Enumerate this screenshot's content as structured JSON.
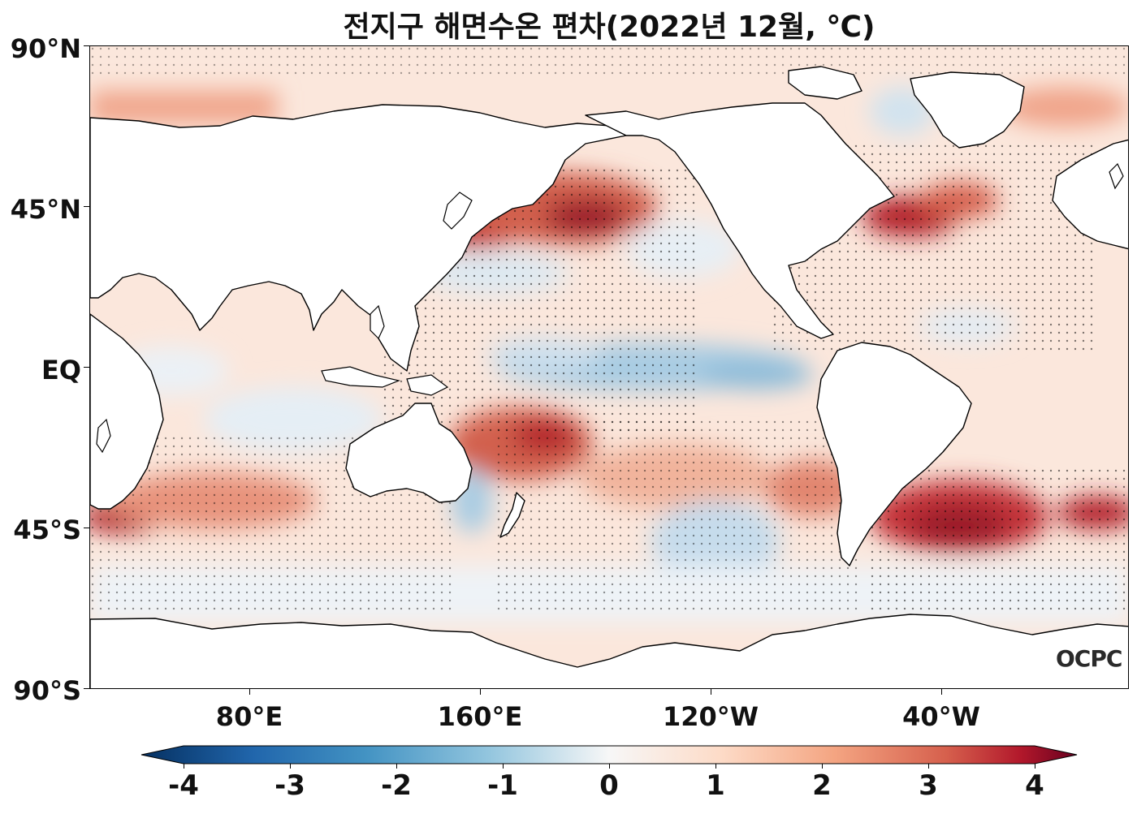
{
  "title": "전지구 해면수온 편차(2022년 12월, ℃)",
  "logo_text": "OCPC",
  "axes": {
    "lat_labels": [
      "90°N",
      "45°N",
      "EQ",
      "45°S",
      "90°S"
    ],
    "lon_labels": [
      "80°E",
      "160°E",
      "120°W",
      "40°W"
    ]
  },
  "colorbar": {
    "ticks": [
      "-4",
      "-3",
      "-2",
      "-1",
      "0",
      "1",
      "2",
      "3",
      "4"
    ],
    "colors": [
      "#053061",
      "#2166ac",
      "#4393c3",
      "#92c5de",
      "#f7f7f7",
      "#fddbc7",
      "#f4a582",
      "#d6604d",
      "#b2182b",
      "#67001f"
    ]
  },
  "legend_colors": {
    "land": "#ffffff",
    "coastline": "#000000",
    "stipple": "#000000"
  }
}
